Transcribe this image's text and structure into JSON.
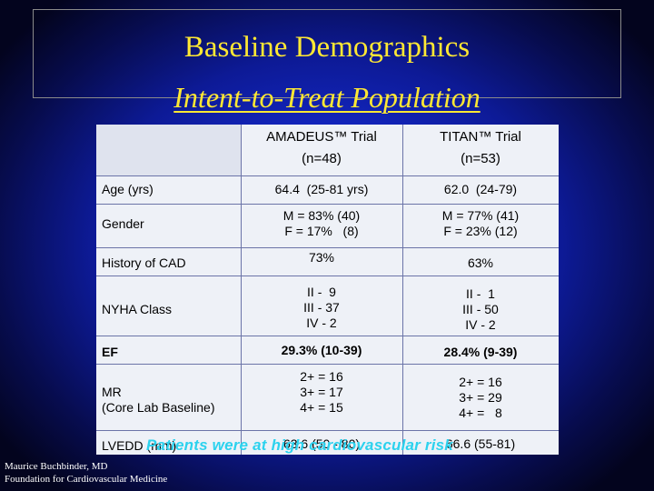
{
  "title": {
    "main": "Baseline Demographics",
    "sub": "Intent-to-Treat Population"
  },
  "table": {
    "headers": {
      "amadeus_name": "AMADEUS™ Trial",
      "amadeus_n": "(n=48)",
      "titan_name": "TITAN™ Trial",
      "titan_n": "(n=53)"
    },
    "rows": [
      {
        "label": "Age (yrs)",
        "amadeus": "64.4  (25-81 yrs)",
        "titan": "62.0  (24-79)"
      },
      {
        "label": "Gender",
        "amadeus": "M = 83% (40)\nF = 17%   (8)",
        "titan": "M = 77% (41)\nF = 23% (12)"
      },
      {
        "label": "History of CAD",
        "amadeus": "73%",
        "titan": "63%"
      },
      {
        "label": "NYHA Class",
        "amadeus": "II -  9\nIII - 37\nIV - 2",
        "titan": "II -  1\nIII - 50\nIV - 2"
      },
      {
        "label": "EF",
        "amadeus": "29.3% (10-39)",
        "titan": "28.4% (9-39)"
      },
      {
        "label": "MR\n(Core Lab Baseline)",
        "amadeus": "2+ = 16\n3+ = 17\n4+ = 15",
        "titan": "2+ = 16\n3+ = 29\n4+ =   8"
      },
      {
        "label": "LVEDD (mm)",
        "amadeus": "63.6 (50 - 80)",
        "titan": "66.6 (55-81)"
      }
    ]
  },
  "overlay_note": "Patients were at high cardiovascular risk",
  "footer": {
    "line1": "Maurice Buchbinder, MD",
    "line2": "Foundation for Cardiovascular Medicine"
  },
  "colors": {
    "background": "#1428c8",
    "title": "#ffe833",
    "note": "#2cd2ee",
    "table": "#eef1f7"
  }
}
